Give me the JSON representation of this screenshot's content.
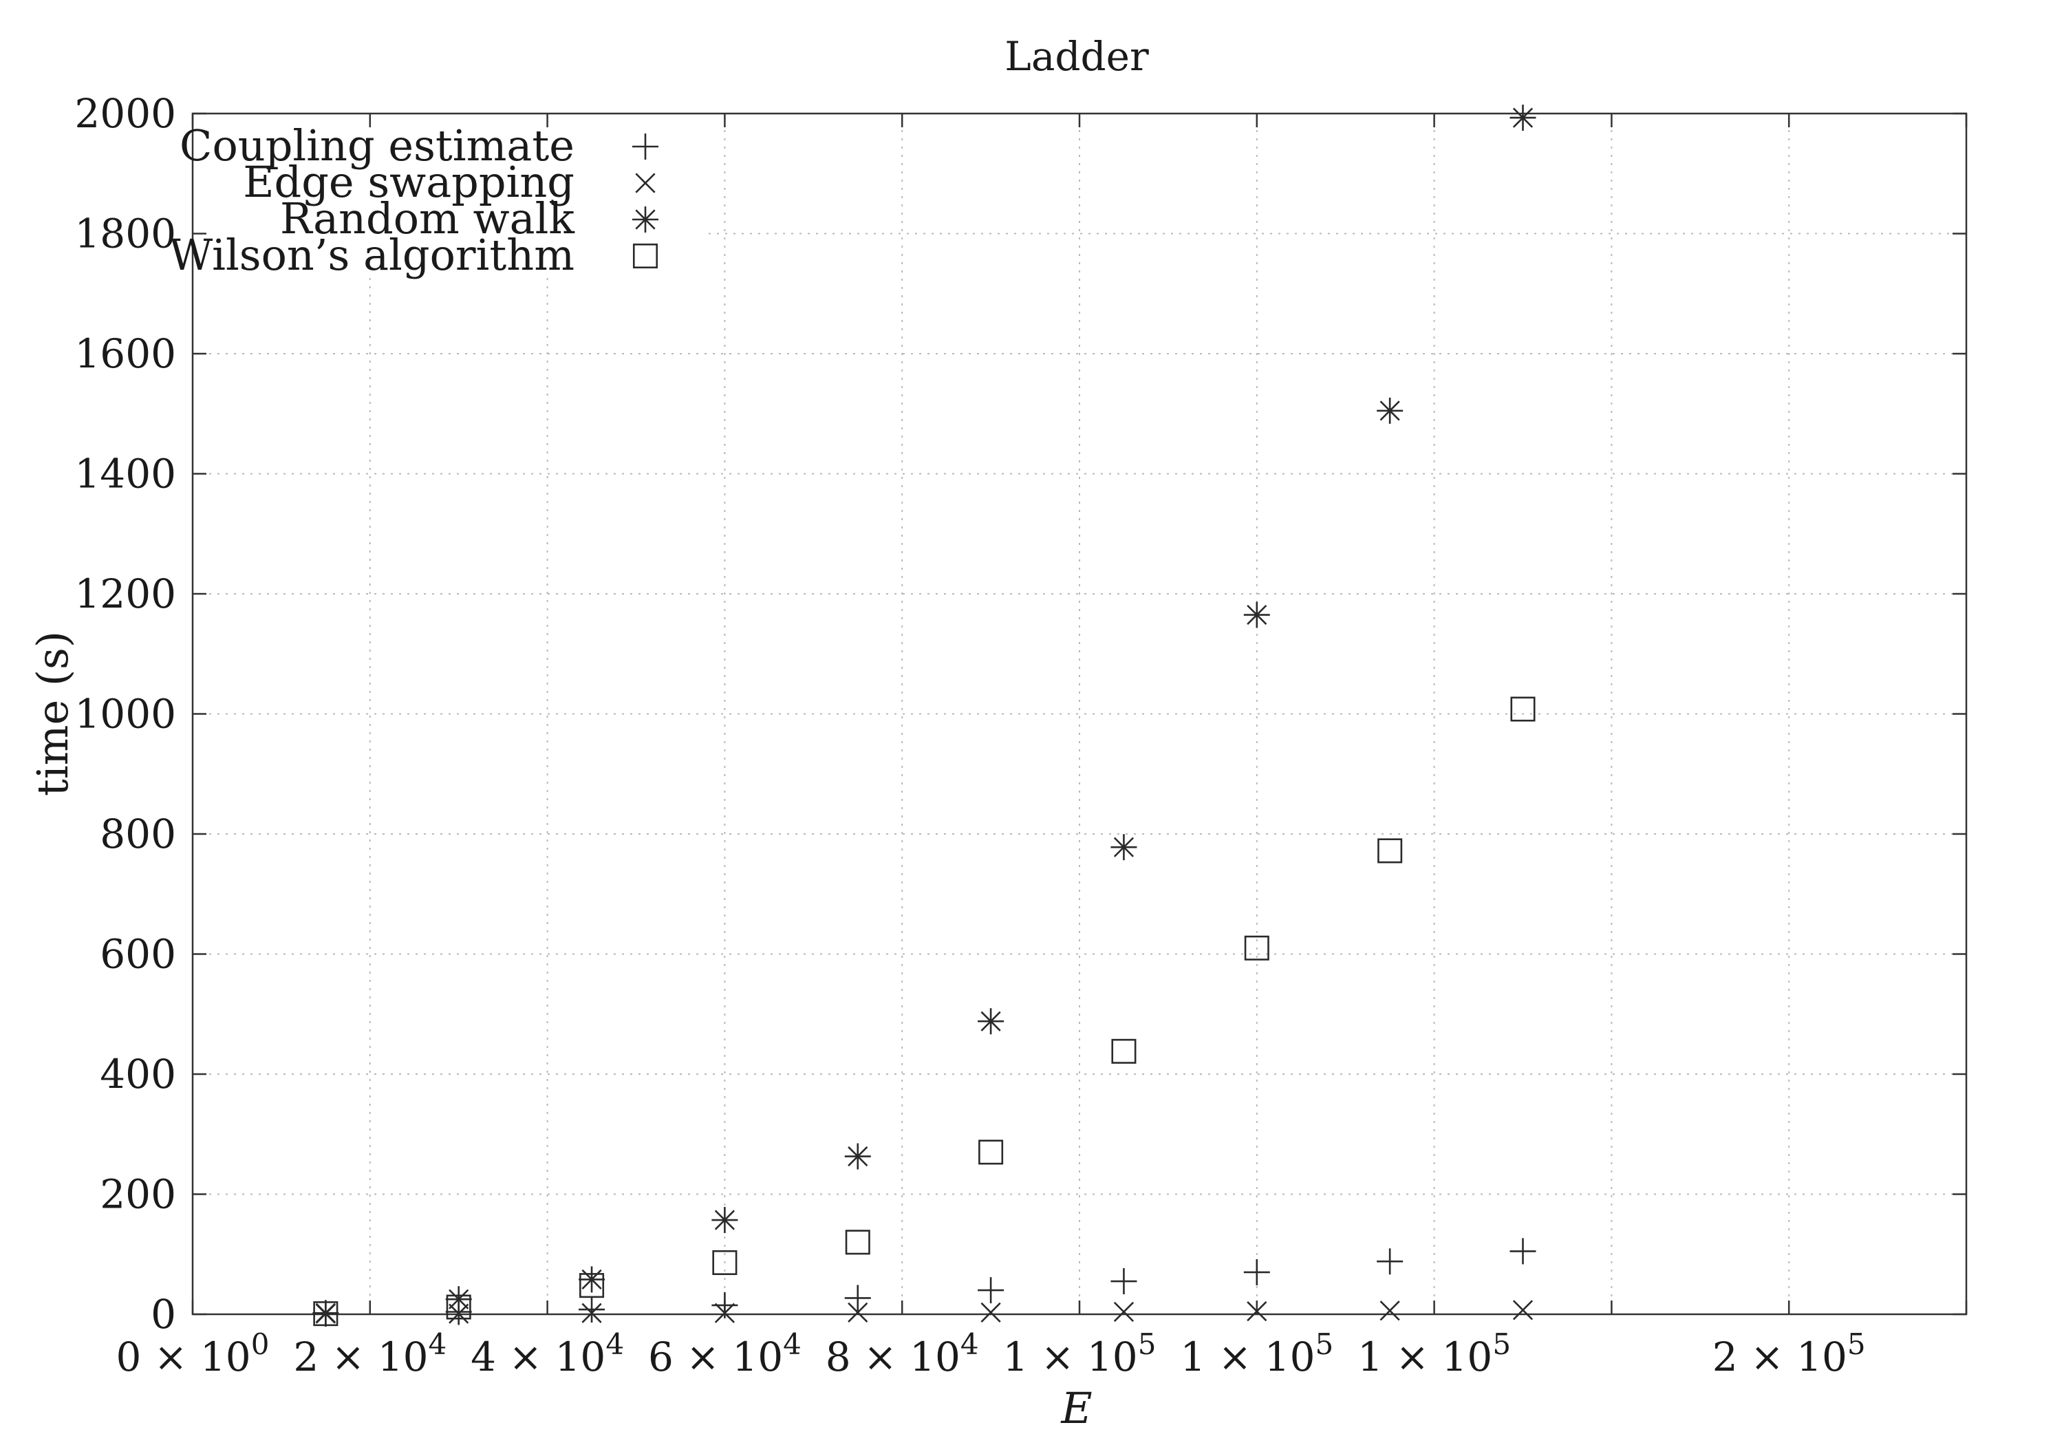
{
  "chart_data": {
    "type": "scatter",
    "title": "Ladder",
    "xlabel": "E",
    "ylabel": "time (s)",
    "xlim": [
      0,
      200000
    ],
    "ylim": [
      0,
      2000
    ],
    "x_ticks": [
      0,
      20000,
      40000,
      60000,
      80000,
      100000,
      120000,
      140000,
      160000,
      180000,
      200000
    ],
    "x_tick_labels": [
      {
        "mant": "0",
        "exp": "0"
      },
      {
        "mant": "2",
        "exp": "4"
      },
      {
        "mant": "4",
        "exp": "4"
      },
      {
        "mant": "6",
        "exp": "4"
      },
      {
        "mant": "8",
        "exp": "4"
      },
      {
        "mant": "1",
        "exp": "5"
      },
      {
        "mant": "1",
        "exp": "5"
      },
      {
        "mant": "1",
        "exp": "5"
      },
      {
        "mant": "2",
        "exp": "5"
      }
    ],
    "x_tick_label_positions": [
      0,
      20000,
      40000,
      60000,
      80000,
      100000,
      120000,
      140000,
      180000
    ],
    "y_ticks": [
      0,
      200,
      400,
      600,
      800,
      1000,
      1200,
      1400,
      1600,
      1800,
      2000
    ],
    "y_tick_labels": [
      "0",
      "200",
      "400",
      "600",
      "800",
      "1000",
      "1200",
      "1400",
      "1600",
      "1800",
      "2000"
    ],
    "grid": true,
    "legend_position": "top-left",
    "x": [
      15000,
      30000,
      45000,
      60000,
      75000,
      90000,
      105000,
      120000,
      135000,
      150000
    ],
    "series": [
      {
        "name": "Coupling estimate",
        "marker": "plus",
        "values": [
          1,
          4,
          8,
          15,
          27,
          40,
          55,
          70,
          88,
          105
        ]
      },
      {
        "name": "Edge swapping",
        "marker": "cross",
        "values": [
          1,
          1,
          2,
          2,
          3,
          3,
          4,
          5,
          6,
          7
        ]
      },
      {
        "name": "Random walk",
        "marker": "star",
        "values": [
          2,
          25,
          58,
          157,
          263,
          488,
          778,
          1165,
          1505,
          1993
        ]
      },
      {
        "name": "Wilson’s algorithm",
        "marker": "square",
        "values": [
          1,
          12,
          48,
          86,
          120,
          270,
          438,
          610,
          772,
          1008
        ]
      }
    ],
    "colors": {
      "ink": "#2a2a2a",
      "grid": "#b8b8b8",
      "background": "#ffffff"
    }
  }
}
